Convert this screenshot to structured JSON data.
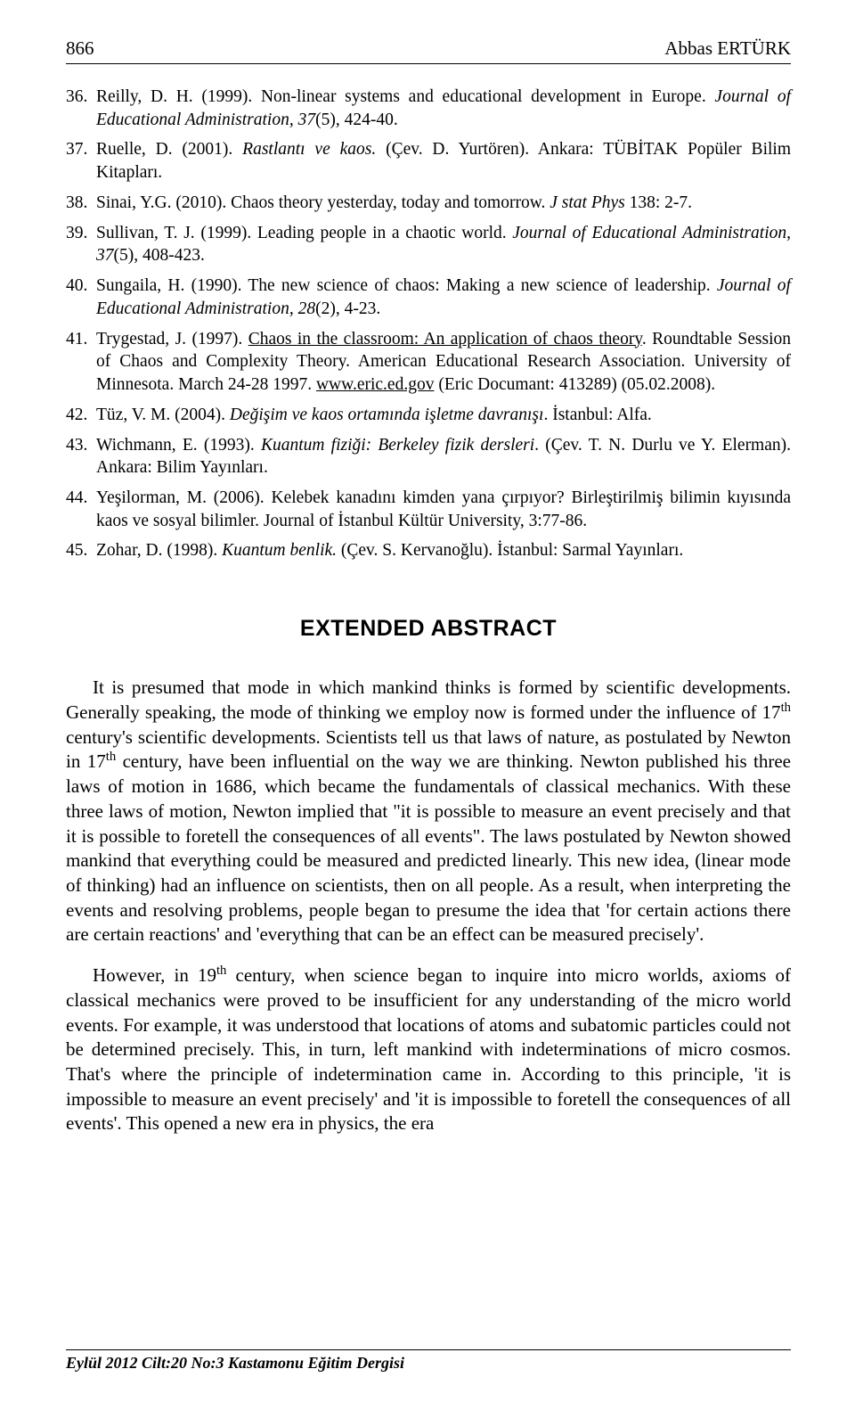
{
  "header": {
    "page_number": "866",
    "author": "Abbas ERTÜRK"
  },
  "references": [
    {
      "num": "36.",
      "prefix": "Reilly, D. H. (1999). Non-linear systems and educational development in Europe. ",
      "italic1": "Journal of Educational Administration, 37",
      "suffix": "(5), 424-40."
    },
    {
      "num": "37.",
      "prefix": "Ruelle, D. (2001). ",
      "italic1": "Rastlantı ve kaos.",
      "suffix": " (Çev. D. Yurtören). Ankara: TÜBİTAK Popüler Bilim Kitapları."
    },
    {
      "num": "38.",
      "prefix": "Sinai, Y.G. (2010). Chaos theory yesterday, today and tomorrow. ",
      "italic1": "J stat Phys",
      "suffix": " 138: 2-7."
    },
    {
      "num": "39.",
      "prefix": "Sullivan, T. J. (1999). Leading people in a chaotic world. ",
      "italic1": "Journal of Educational Administration, 37",
      "suffix": "(5), 408-423."
    },
    {
      "num": "40.",
      "prefix": "Sungaila, H. (1990). The new science of chaos: Making a new science of leadership. ",
      "italic1": "Journal of Educational Administration, 28",
      "suffix": "(2), 4-23."
    },
    {
      "num": "41.",
      "prefix": "Trygestad, J. (1997). ",
      "underline": "Chaos in the classroom: An application of chaos theory",
      "middle": ". Roundtable Session of Chaos and Complexity Theory. American Educational Research Association. University of Minnesota. March 24-28 1997. ",
      "underline2": "www.eric.ed.gov",
      "suffix": " (Eric Documant: 413289) (05.02.2008)."
    },
    {
      "num": "42.",
      "prefix": "Tüz, V. M. (2004). ",
      "italic1": "Değişim ve kaos ortamında işletme davranışı",
      "suffix": ". İstanbul: Alfa."
    },
    {
      "num": "43.",
      "prefix": "Wichmann, E. (1993). ",
      "italic1": "Kuantum fiziği: Berkeley fizik dersleri",
      "suffix": ". (Çev. T. N. Durlu ve Y. Elerman). Ankara: Bilim Yayınları."
    },
    {
      "num": "44.",
      "prefix": "Yeşilorman, M. (2006). Kelebek kanadını kimden yana çırpıyor? Birleştirilmiş bilimin kıyısında kaos ve sosyal bilimler. Journal of İstanbul Kültür University, 3:77-86.",
      "italic1": "",
      "suffix": ""
    },
    {
      "num": "45.",
      "prefix": "Zohar, D. (1998). ",
      "italic1": "Kuantum benlik.",
      "suffix": " (Çev. S. Kervanoğlu). İstanbul: Sarmal Yayınları."
    }
  ],
  "abstract_heading": "EXTENDED ABSTRACT",
  "paragraphs": {
    "p1": {
      "t1": "It is presumed that mode in which mankind thinks is formed by scientific developments. Generally speaking, the mode of thinking we employ now is formed under the influence of 17",
      "sup1": "th",
      "t2": " century's scientific developments. Scientists tell us that laws of nature, as postulated by Newton in 17",
      "sup2": "th",
      "t3": " century, have been influential on the way we are thinking. Newton published his three laws of motion in 1686, which became the fundamentals of classical mechanics. With these three laws of motion, Newton implied that \"it is possible to measure an event precisely and that it is possible to foretell the consequences of all events\". The laws postulated by Newton showed mankind that everything could be measured and predicted linearly. This new idea, (linear mode of thinking) had an influence on scientists, then on all people. As a result, when interpreting the events and resolving problems, people began to presume the idea that 'for certain actions there are certain reactions' and 'everything that can be an effect can be measured precisely'."
    },
    "p2": {
      "t1": "However, in 19",
      "sup1": "th",
      "t2": " century, when science began to inquire into micro worlds, axioms of classical mechanics were proved to be insufficient for any understanding of the micro world events. For example, it was understood that locations of atoms and subatomic particles could not be determined precisely. This, in turn, left mankind with indeterminations of micro cosmos. That's where the principle of indetermination came in. According to this principle, 'it is impossible to measure an event precisely' and 'it is impossible to foretell the consequences of all events'. This opened a new era in physics, the era"
    }
  },
  "footer": "Eylül 2012 Cilt:20 No:3 Kastamonu Eğitim Dergisi"
}
